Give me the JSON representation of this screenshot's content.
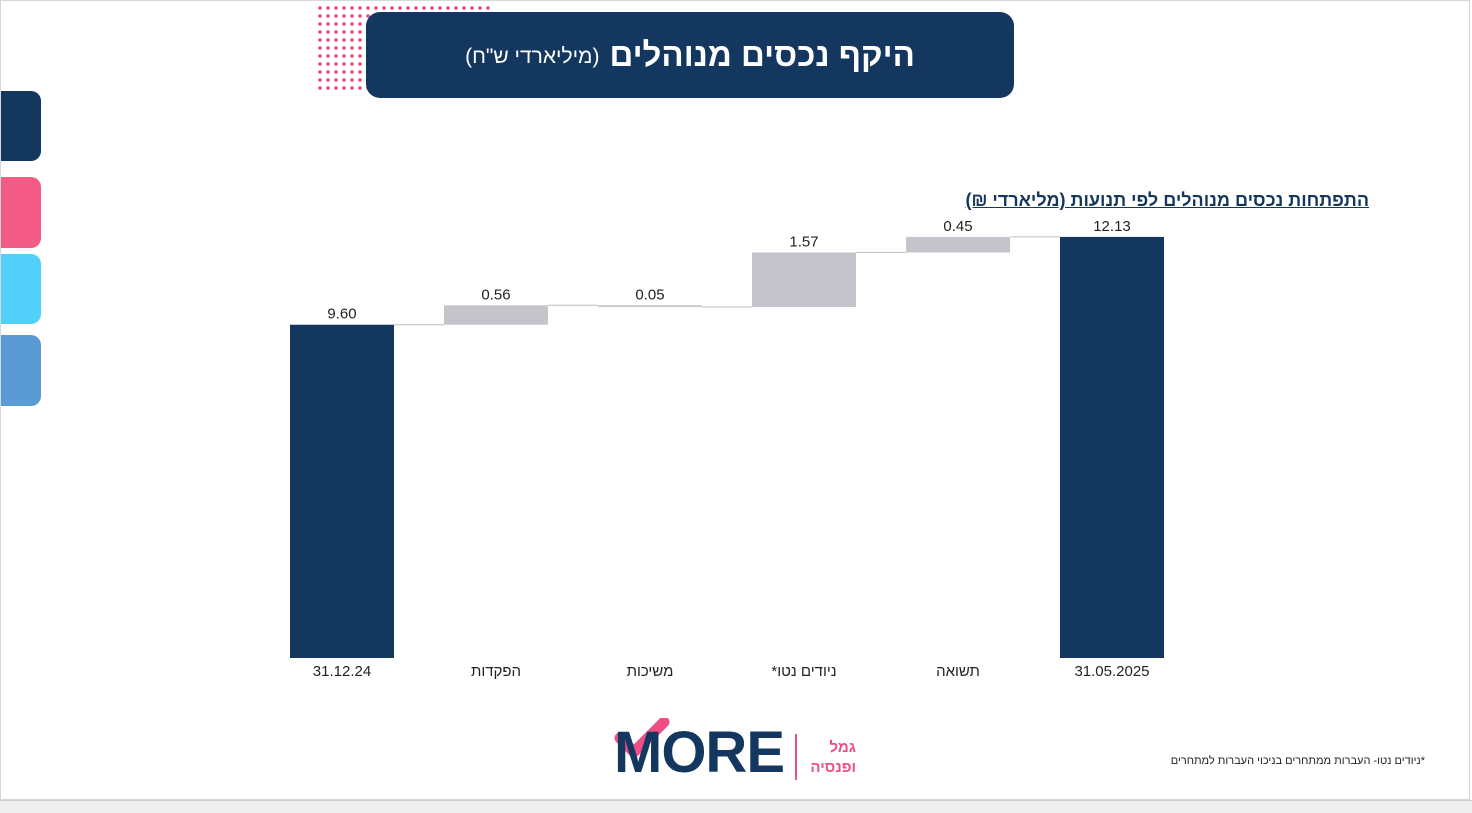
{
  "header": {
    "title": "היקף נכסים מנוהלים",
    "unit": "(מיליארדי ש\"ח)"
  },
  "side_tabs": [
    {
      "color": "#13375f"
    },
    {
      "color": "#f35b86"
    },
    {
      "color": "#53d0f9"
    },
    {
      "color": "#5b9bd5"
    }
  ],
  "chart_title": "התפתחות נכסים מנוהלים לפי תנועות (מליארדי ₪)",
  "chart_data": {
    "type": "bar",
    "subtype": "waterfall",
    "categories": [
      "31.12.24",
      "הפקדות",
      "משיכות",
      "ניודים נטו*",
      "תשואה",
      "31.05.2025"
    ],
    "values": [
      9.6,
      0.56,
      0.05,
      1.57,
      0.45,
      12.13
    ],
    "labels": [
      "9.60",
      "0.56",
      "0.05",
      "1.57",
      "0.45",
      "12.13"
    ],
    "kinds": [
      "total",
      "increase",
      "decrease",
      "increase",
      "increase",
      "total"
    ],
    "colors": {
      "total": "#13375f",
      "change": "#c5c4cb",
      "connector": "#bfbfbf"
    },
    "ylim": [
      0,
      14
    ],
    "grid": false,
    "legend": "none"
  },
  "logo": {
    "word": "MORE",
    "sub_line1": "גמל",
    "sub_line2": "ופנסיה",
    "colors": {
      "navy": "#13375f",
      "pink": "#ef4f86"
    }
  },
  "footnote": "*ניודים נטו- העברות ממתחרים בניכוי העברות למתחרים"
}
